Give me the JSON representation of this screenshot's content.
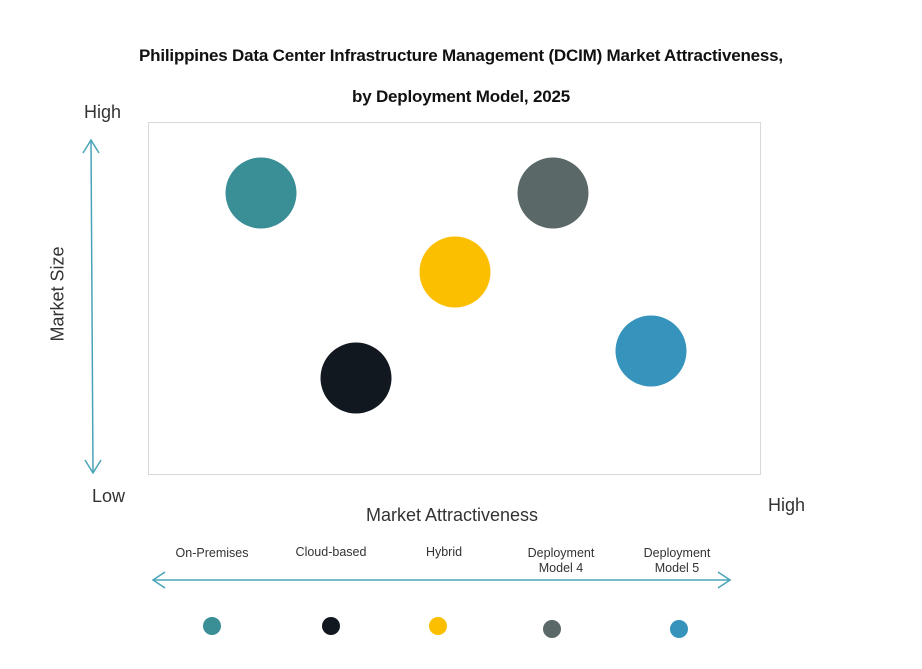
{
  "chart_data": {
    "type": "scatter",
    "title": "Philippines Data Center Infrastructure Management (DCIM) Market Attractiveness,",
    "subtitle": "by Deployment Model, 2025",
    "xlabel": "Market Attractiveness",
    "ylabel": "Market Size",
    "x_axis": {
      "low_label": "Low",
      "high_label": "High"
    },
    "y_axis": {
      "low_label": "Low",
      "high_label": "High"
    },
    "xlim": [
      0,
      100
    ],
    "ylim": [
      0,
      100
    ],
    "grid": false,
    "legend_position": "bottom",
    "series": [
      {
        "name": "On-Premises",
        "x": 18.5,
        "y": 80,
        "color": "#3a8e96"
      },
      {
        "name": "Cloud-based",
        "x": 34,
        "y": 27.5,
        "color": "#111820"
      },
      {
        "name": "Hybrid",
        "x": 50,
        "y": 57.5,
        "color": "#fbbf00"
      },
      {
        "name": "Deployment Model 4",
        "x": 66,
        "y": 80,
        "color": "#5b6868"
      },
      {
        "name": "Deployment Model 5",
        "x": 82,
        "y": 35,
        "color": "#3593bc"
      }
    ]
  },
  "labels": {
    "y_high": "High",
    "low": "Low",
    "x_high": "High"
  },
  "legend": [
    {
      "line1": "On-Premises",
      "line2": ""
    },
    {
      "line1": "Cloud-based",
      "line2": ""
    },
    {
      "line1": "Hybrid",
      "line2": ""
    },
    {
      "line1": "Deployment",
      "line2": "Model 4"
    },
    {
      "line1": "Deployment",
      "line2": "Model 5"
    }
  ],
  "axis_color": "#4aa3b8"
}
